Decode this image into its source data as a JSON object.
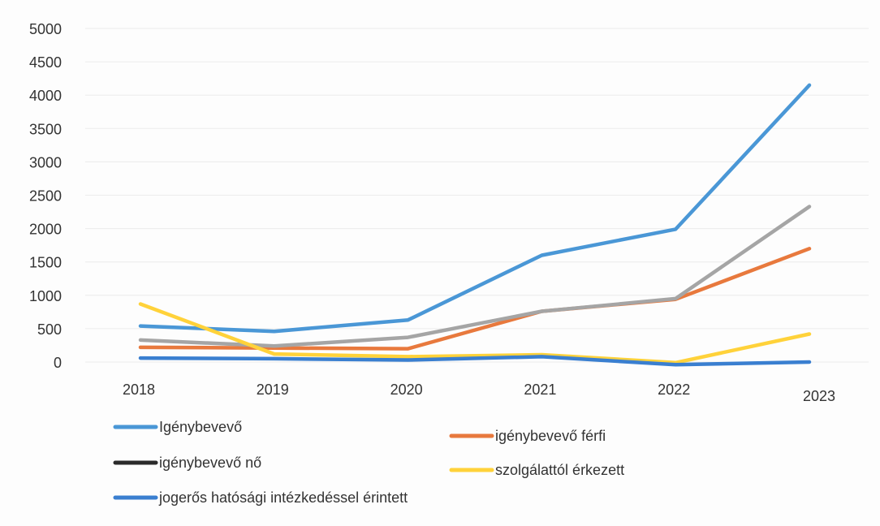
{
  "chart_data": {
    "type": "line",
    "title": "",
    "xlabel": "",
    "ylabel": "",
    "categories": [
      "2018",
      "2019",
      "2020",
      "2021",
      "2022",
      "2023"
    ],
    "ylim": [
      0,
      5000
    ],
    "yticks": [
      0,
      500,
      1000,
      1500,
      2000,
      2500,
      3000,
      3500,
      4000,
      4500,
      5000
    ],
    "grid": true,
    "legend_position": "bottom",
    "series": [
      {
        "name": "Igénybevevő",
        "color": "#4a97d6",
        "values": [
          540,
          460,
          630,
          1600,
          1990,
          4150
        ]
      },
      {
        "name": "igénybevevő férfi",
        "color": "#e8793d",
        "values": [
          220,
          210,
          200,
          760,
          940,
          1700
        ]
      },
      {
        "name": "igénybevevő nő",
        "color": "#2b2b2b",
        "line_color": "#a5a5a5",
        "values": [
          330,
          240,
          370,
          760,
          950,
          2330
        ]
      },
      {
        "name": "szolgálattól érkezett",
        "color": "#ffd23a",
        "values": [
          870,
          120,
          80,
          110,
          -10,
          420
        ]
      },
      {
        "name": "jogerős hatósági intézkedéssel érintett",
        "color": "#3a7fd0",
        "values": [
          60,
          50,
          30,
          80,
          -40,
          0
        ]
      }
    ]
  }
}
